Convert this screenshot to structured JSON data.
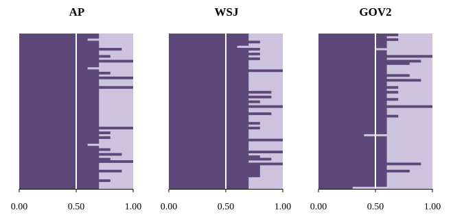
{
  "colors": {
    "dark": "#5e4879",
    "light": "#cdc3df",
    "marker": "#ffffff",
    "axis": "#000000"
  },
  "chart_data": [
    {
      "type": "bar",
      "title": "AP",
      "orientation": "horizontal",
      "stacked": true,
      "xlim": [
        0,
        1
      ],
      "x_ticks": [
        "0.00",
        "0.50",
        "1.00"
      ],
      "reference_line_x": 0.5,
      "series": [
        {
          "values": [
            0.7,
            0.7,
            0.6,
            0.7,
            0.7,
            0.7,
            0.9,
            0.7,
            0.7,
            0.8,
            0.7,
            1.0,
            0.7,
            0.7,
            0.6,
            0.7,
            0.8,
            0.7,
            1.0,
            0.7,
            0.7,
            0.7,
            1.0,
            0.7,
            0.7,
            0.7,
            0.7,
            0.7,
            0.7,
            0.7,
            0.7,
            0.7,
            0.7,
            0.7,
            0.7,
            0.7,
            0.7,
            0.7,
            0.7,
            1.0,
            0.7,
            0.8,
            0.7,
            0.8,
            0.7,
            0.7,
            0.6,
            0.7,
            0.8,
            0.7,
            0.9,
            0.7,
            0.8,
            1.0,
            0.7,
            0.7,
            0.7,
            0.9,
            0.7,
            0.7,
            0.7,
            0.8,
            0.7,
            0.7,
            0.7
          ]
        }
      ]
    },
    {
      "type": "bar",
      "title": "WSJ",
      "orientation": "horizontal",
      "stacked": true,
      "xlim": [
        0,
        1
      ],
      "x_ticks": [
        "0.00",
        "0.50",
        "1.00"
      ],
      "reference_line_x": 0.5,
      "series": [
        {
          "values": [
            0.7,
            0.7,
            0.7,
            0.8,
            0.7,
            0.6,
            0.8,
            0.7,
            0.8,
            0.7,
            0.8,
            0.7,
            0.7,
            0.7,
            0.7,
            1.0,
            0.7,
            0.7,
            0.7,
            0.7,
            0.7,
            0.7,
            0.7,
            0.7,
            0.9,
            0.7,
            0.9,
            0.7,
            0.8,
            0.7,
            1.0,
            0.7,
            0.7,
            0.9,
            0.7,
            0.7,
            0.7,
            0.8,
            0.7,
            0.8,
            0.7,
            0.7,
            0.7,
            0.7,
            1.0,
            0.7,
            0.7,
            0.7,
            0.7,
            1.0,
            0.7,
            0.8,
            0.9,
            0.7,
            1.0,
            0.8,
            0.8,
            0.8,
            0.8,
            0.8,
            0.7,
            0.7,
            0.7,
            0.7,
            0.7
          ]
        }
      ]
    },
    {
      "type": "bar",
      "title": "GOV2",
      "orientation": "horizontal",
      "stacked": true,
      "xlim": [
        0,
        1
      ],
      "x_ticks": [
        "0.00",
        "0.50",
        "1.00"
      ],
      "reference_line_x": 0.5,
      "series": [
        {
          "values": [
            0.7,
            0.6,
            0.7,
            0.6,
            0.6,
            0.6,
            0.5,
            0.6,
            0.6,
            1.0,
            0.6,
            0.9,
            0.8,
            0.6,
            0.6,
            0.6,
            0.6,
            0.8,
            0.6,
            0.9,
            0.6,
            0.6,
            0.7,
            0.6,
            0.7,
            0.6,
            0.6,
            0.7,
            0.6,
            0.6,
            1.0,
            0.6,
            0.6,
            0.6,
            0.7,
            0.6,
            0.6,
            0.6,
            0.6,
            0.6,
            0.6,
            0.6,
            0.4,
            0.6,
            0.6,
            0.6,
            0.6,
            0.6,
            0.6,
            0.6,
            0.6,
            0.6,
            0.6,
            0.6,
            0.9,
            0.6,
            0.6,
            0.8,
            0.6,
            0.6,
            0.6,
            0.6,
            0.6,
            0.6,
            0.3
          ]
        }
      ]
    }
  ]
}
